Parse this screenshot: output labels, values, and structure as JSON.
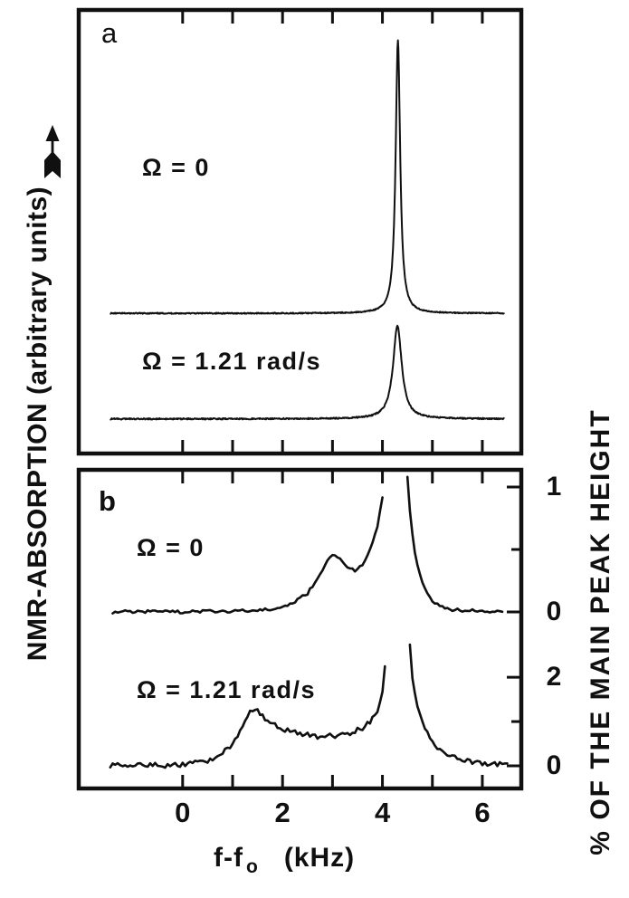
{
  "colors": {
    "ink": "#101010",
    "background": "#ffffff"
  },
  "figure": {
    "left_axis": {
      "label": "NMR-ABSORPTION (arbitrary units)",
      "arrow_icon": "up-arrow"
    },
    "right_axis": {
      "label": "% OF THE MAIN PEAK HEIGHT"
    },
    "x_axis": {
      "label_main": "f-f",
      "label_sub": "o",
      "label_units": "(kHz)"
    }
  },
  "chart_data": [
    {
      "panel": "a",
      "panel_tag": "a",
      "type": "line",
      "ylabel": "NMR-ABSORPTION (arbitrary units)",
      "xlabel": "f-f0 (kHz)",
      "xlim": [
        -2.08,
        6.78
      ],
      "x_ticks": [
        0,
        1,
        2,
        3,
        4,
        5,
        6
      ],
      "x_tick_labels": [],
      "series": [
        {
          "name": "Ω = 0",
          "shape": "lorentzian",
          "center_khz": 4.31,
          "fwhm_khz": 0.11,
          "height_frac": 0.615,
          "baseline_frac": 0.316,
          "x_start": -1.44,
          "x_end": 6.43,
          "noise_frac": 0.0012
        },
        {
          "name": "Ω = 1.21 rad/s",
          "shape": "lorentzian",
          "center_khz": 4.3,
          "fwhm_khz": 0.21,
          "height_frac": 0.21,
          "baseline_frac": 0.078,
          "x_start": -1.44,
          "x_end": 6.43,
          "noise_frac": 0.0015
        }
      ]
    },
    {
      "panel": "b",
      "panel_tag": "b",
      "type": "line",
      "ylabel": "% OF THE MAIN PEAK HEIGHT",
      "xlabel": "f-f0 (kHz)",
      "xlim": [
        -2.08,
        6.78
      ],
      "x_ticks": [
        0,
        1,
        2,
        3,
        4,
        5,
        6
      ],
      "x_tick_labels": [
        {
          "value": 0,
          "label": "0"
        },
        {
          "value": 2,
          "label": "2"
        },
        {
          "value": 4,
          "label": "4"
        },
        {
          "value": 6,
          "label": "6"
        }
      ],
      "right_axis_ticks": [
        {
          "series": 0,
          "value": 1,
          "label": "1"
        },
        {
          "series": 0,
          "value": 0.5
        },
        {
          "series": 0,
          "value": 0,
          "label": "0"
        },
        {
          "series": 1,
          "value": 2,
          "label": "2"
        },
        {
          "series": 1,
          "value": 1
        },
        {
          "series": 1,
          "value": 0,
          "label": "0"
        }
      ],
      "series": [
        {
          "name": "Ω = 0",
          "shape": "points",
          "unit": "percent of main peak height",
          "zero_frac": 0.554,
          "frac_per_unit": 0.392,
          "clip_value": 1.12,
          "noise": 0.012,
          "step": 0.05,
          "points": [
            [
              -1.4,
              0
            ],
            [
              -0.8,
              0.005
            ],
            [
              0.0,
              0.0
            ],
            [
              0.6,
              0.005
            ],
            [
              1.2,
              0.01
            ],
            [
              1.7,
              0.02
            ],
            [
              2.0,
              0.04
            ],
            [
              2.25,
              0.08
            ],
            [
              2.5,
              0.15
            ],
            [
              2.7,
              0.26
            ],
            [
              2.85,
              0.38
            ],
            [
              3.0,
              0.46
            ],
            [
              3.12,
              0.43
            ],
            [
              3.3,
              0.36
            ],
            [
              3.45,
              0.335
            ],
            [
              3.6,
              0.38
            ],
            [
              3.72,
              0.46
            ],
            [
              3.82,
              0.57
            ],
            [
              3.92,
              0.72
            ],
            [
              4.0,
              0.92
            ],
            [
              4.04,
              1.05
            ],
            [
              4.08,
              1.35
            ],
            [
              4.47,
              1.35
            ],
            [
              4.51,
              1.0
            ],
            [
              4.57,
              0.7
            ],
            [
              4.65,
              0.48
            ],
            [
              4.72,
              0.34
            ],
            [
              4.82,
              0.21
            ],
            [
              4.92,
              0.13
            ],
            [
              5.05,
              0.07
            ],
            [
              5.2,
              0.04
            ],
            [
              5.4,
              0.02
            ],
            [
              5.7,
              0.01
            ],
            [
              6.0,
              0.008
            ],
            [
              6.42,
              0.005
            ]
          ]
        },
        {
          "name": "Ω = 1.21 rad/s",
          "shape": "points",
          "unit": "percent of main peak height",
          "zero_frac": 0.071,
          "frac_per_unit": 0.139,
          "clip_value": 3.12,
          "noise": 0.055,
          "step": 0.05,
          "points": [
            [
              -1.45,
              0.02
            ],
            [
              -1.1,
              0.0
            ],
            [
              -0.7,
              0.02
            ],
            [
              -0.3,
              0.01
            ],
            [
              0.0,
              0.03
            ],
            [
              0.3,
              0.07
            ],
            [
              0.55,
              0.14
            ],
            [
              0.8,
              0.28
            ],
            [
              1.0,
              0.5
            ],
            [
              1.15,
              0.78
            ],
            [
              1.28,
              1.05
            ],
            [
              1.38,
              1.25
            ],
            [
              1.45,
              1.28
            ],
            [
              1.55,
              1.18
            ],
            [
              1.7,
              1.02
            ],
            [
              1.9,
              0.88
            ],
            [
              2.15,
              0.77
            ],
            [
              2.45,
              0.7
            ],
            [
              2.75,
              0.66
            ],
            [
              3.05,
              0.68
            ],
            [
              3.35,
              0.74
            ],
            [
              3.6,
              0.86
            ],
            [
              3.78,
              1.02
            ],
            [
              3.9,
              1.25
            ],
            [
              4.0,
              1.65
            ],
            [
              4.05,
              2.3
            ],
            [
              4.1,
              3.1
            ],
            [
              4.13,
              3.8
            ],
            [
              4.49,
              3.8
            ],
            [
              4.53,
              3.05
            ],
            [
              4.58,
              2.2
            ],
            [
              4.64,
              1.65
            ],
            [
              4.72,
              1.25
            ],
            [
              4.82,
              0.92
            ],
            [
              4.95,
              0.65
            ],
            [
              5.08,
              0.45
            ],
            [
              5.22,
              0.32
            ],
            [
              5.4,
              0.2
            ],
            [
              5.6,
              0.13
            ],
            [
              5.85,
              0.08
            ],
            [
              6.1,
              0.05
            ],
            [
              6.35,
              0.04
            ],
            [
              6.5,
              0.09
            ]
          ]
        }
      ]
    }
  ]
}
